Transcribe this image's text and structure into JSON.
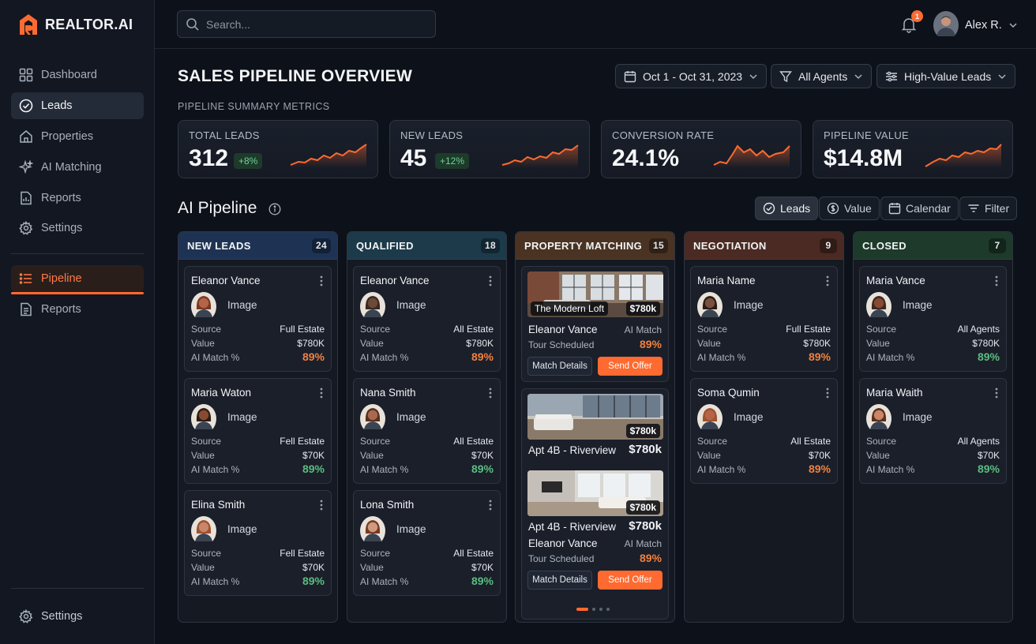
{
  "brand": {
    "name": "REALTOR.AI",
    "accent": "#ff6a30"
  },
  "sidebar": {
    "items": [
      {
        "label": "Dashboard",
        "icon": "grid-icon"
      },
      {
        "label": "Leads",
        "icon": "check-circle-icon"
      },
      {
        "label": "Properties",
        "icon": "home-icon"
      },
      {
        "label": "AI Matching",
        "icon": "sparkle-icon"
      },
      {
        "label": "Reports",
        "icon": "report-icon"
      },
      {
        "label": "Settings",
        "icon": "gear-icon"
      }
    ],
    "secondary": [
      {
        "label": "Pipeline",
        "icon": "list-icon"
      },
      {
        "label": "Reports",
        "icon": "document-icon"
      }
    ],
    "footer_settings": "Settings"
  },
  "topbar": {
    "search_placeholder": "Search...",
    "notification_count": "1",
    "user_name": "Alex R."
  },
  "page": {
    "title": "SALES PIPELINE OVERVIEW",
    "summary_label": "PIPELINE SUMMARY METRICS",
    "filters": {
      "date": "Oct 1 - Oct 31, 2023",
      "agents": "All Agents",
      "leads": "High-Value Leads"
    }
  },
  "metrics": [
    {
      "label": "TOTAL LEADS",
      "value": "312",
      "delta": "+8%"
    },
    {
      "label": "NEW LEADS",
      "value": "45",
      "delta": "+12%"
    },
    {
      "label": "CONVERSION RATE",
      "value": "24.1%",
      "delta": ""
    },
    {
      "label": "PIPELINE VALUE",
      "value": "$14.8M",
      "delta": ""
    }
  ],
  "pipeline": {
    "title": "AI Pipeline",
    "views": {
      "leads": "Leads",
      "value": "Value",
      "calendar": "Calendar",
      "filter": "Filter"
    },
    "columns": [
      {
        "title": "NEW LEADS",
        "count": "24",
        "color": "#1e3354",
        "cards": [
          {
            "name": "Eleanor Vance",
            "image": "Image",
            "source_label": "Source",
            "source": "Full Estate",
            "value_label": "Value",
            "value": "$780K",
            "match_label": "AI Match %",
            "match": "89%"
          },
          {
            "name": "Maria Waton",
            "image": "Image",
            "source_label": "Source",
            "source": "Fell Estate",
            "value_label": "Value",
            "value": "$70K",
            "match_label": "AI Match %",
            "match": "89%"
          },
          {
            "name": "Elina Smith",
            "image": "Image",
            "source_label": "Source",
            "source": "Fell Estate",
            "value_label": "Value",
            "value": "$70K",
            "match_label": "AI Match %",
            "match": "89%"
          }
        ]
      },
      {
        "title": "QUALIFIED",
        "count": "18",
        "color": "#1c3a4a",
        "cards": [
          {
            "name": "Eleanor Vance",
            "image": "Image",
            "source_label": "Source",
            "source": "All Estate",
            "value_label": "Value",
            "value": "$780K",
            "match_label": "AI Match %",
            "match": "89%"
          },
          {
            "name": "Nana Smith",
            "image": "Image",
            "source_label": "Source",
            "source": "All Estate",
            "value_label": "Value",
            "value": "$70K",
            "match_label": "AI Match %",
            "match": "89%"
          },
          {
            "name": "Lona Smith",
            "image": "Image",
            "source_label": "Source",
            "source": "All Estate",
            "value_label": "Value",
            "value": "$70K",
            "match_label": "AI Match %",
            "match": "89%"
          }
        ]
      },
      {
        "title": "PROPERTY MATCHING",
        "count": "15",
        "color": "#4a3322",
        "properties": [
          {
            "tag": "The Modern Loft",
            "price": "$780k",
            "client": "Eleanor Vance",
            "match_label": "AI Match",
            "status": "Tour Scheduled",
            "match": "89%",
            "details": "Match Details",
            "offer": "Send Offer"
          },
          {
            "price": "$780k",
            "title": "Apt 4B - Riverview",
            "title_price": "$780k"
          },
          {
            "price": "$780k",
            "title": "Apt 4B - Riverview",
            "title_price": "$780k",
            "client": "Eleanor Vance",
            "match_label": "AI Match",
            "status": "Tour Scheduled",
            "match": "89%",
            "details": "Match Details",
            "offer": "Send Offer"
          }
        ]
      },
      {
        "title": "NEGOTIATION",
        "count": "9",
        "color": "#4a2a22",
        "cards": [
          {
            "name": "Maria Name",
            "image": "Image",
            "source_label": "Source",
            "source": "Full Estate",
            "value_label": "Value",
            "value": "$780K",
            "match_label": "AI Match %",
            "match": "89%"
          },
          {
            "name": "Soma Qumin",
            "image": "Image",
            "source_label": "Source",
            "source": "All Estate",
            "value_label": "Value",
            "value": "$70K",
            "match_label": "AI Match %",
            "match": "89%"
          }
        ]
      },
      {
        "title": "CLOSED",
        "count": "7",
        "color": "#1d3a2a",
        "cards": [
          {
            "name": "Maria Vance",
            "image": "Image",
            "source_label": "Source",
            "source": "All Agents",
            "value_label": "Value",
            "value": "$780K",
            "match_label": "AI Match %",
            "match": "89%"
          },
          {
            "name": "Maria Waith",
            "image": "Image",
            "source_label": "Source",
            "source": "All Agents",
            "value_label": "Value",
            "value": "$70K",
            "match_label": "AI Match %",
            "match": "89%"
          }
        ]
      }
    ]
  }
}
